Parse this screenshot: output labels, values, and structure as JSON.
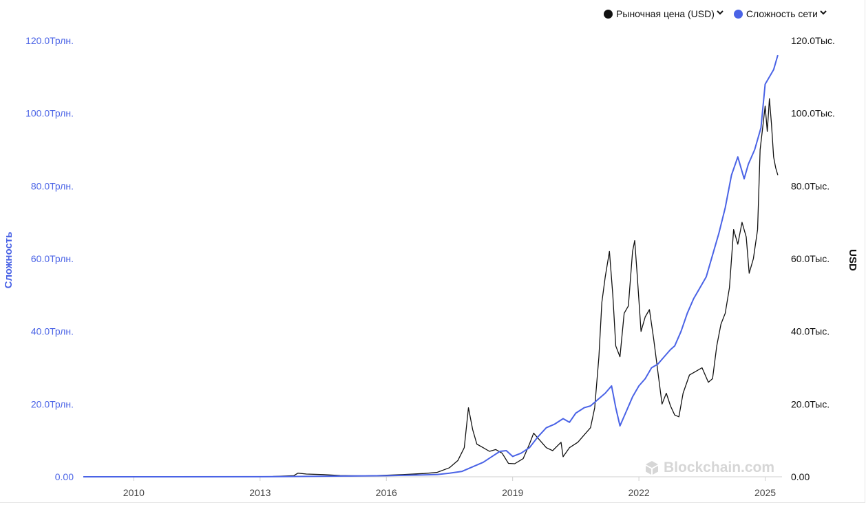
{
  "legend": {
    "items": [
      {
        "label": "Рыночная цена (USD)",
        "color": "#111111"
      },
      {
        "label": "Сложность сети",
        "color": "#4a63e6"
      }
    ]
  },
  "watermark": "Blockchain.com",
  "chart_data": {
    "type": "line",
    "xlabel": "",
    "x_ticks": [
      "2010",
      "2013",
      "2016",
      "2019",
      "2022",
      "2025"
    ],
    "x_range": [
      2008.8,
      2025.4
    ],
    "left_axis": {
      "label": "Сложность",
      "color": "#4a63e6",
      "range": [
        0,
        120
      ],
      "ticks": [
        {
          "value": 0,
          "label": "0.00"
        },
        {
          "value": 20,
          "label": "20.0Трлн."
        },
        {
          "value": 40,
          "label": "40.0Трлн."
        },
        {
          "value": 60,
          "label": "60.0Трлн."
        },
        {
          "value": 80,
          "label": "80.0Трлн."
        },
        {
          "value": 100,
          "label": "100.0Трлн."
        },
        {
          "value": 120,
          "label": "120.0Трлн."
        }
      ]
    },
    "right_axis": {
      "label": "USD",
      "color": "#111111",
      "range": [
        0,
        120000
      ],
      "ticks": [
        {
          "value": 0,
          "label": "0.00"
        },
        {
          "value": 20000,
          "label": "20.0Тыс."
        },
        {
          "value": 40000,
          "label": "40.0Тыс."
        },
        {
          "value": 60000,
          "label": "60.0Тыс."
        },
        {
          "value": 80000,
          "label": "80.0Тыс."
        },
        {
          "value": 100000,
          "label": "100.0Тыс."
        },
        {
          "value": 120000,
          "label": "120.0Тыс."
        }
      ]
    },
    "series": [
      {
        "name": "Рыночная цена (USD)",
        "axis": "right",
        "color": "#111111",
        "points": [
          [
            2008.8,
            0
          ],
          [
            2010.5,
            0
          ],
          [
            2011.5,
            5
          ],
          [
            2012.5,
            10
          ],
          [
            2013.3,
            100
          ],
          [
            2013.8,
            300
          ],
          [
            2013.9,
            1000
          ],
          [
            2014.1,
            750
          ],
          [
            2014.5,
            600
          ],
          [
            2014.9,
            350
          ],
          [
            2015.5,
            250
          ],
          [
            2015.9,
            400
          ],
          [
            2016.4,
            600
          ],
          [
            2016.9,
            900
          ],
          [
            2017.2,
            1200
          ],
          [
            2017.5,
            2500
          ],
          [
            2017.7,
            4500
          ],
          [
            2017.85,
            8000
          ],
          [
            2017.95,
            19000
          ],
          [
            2018.05,
            13000
          ],
          [
            2018.15,
            9000
          ],
          [
            2018.3,
            8000
          ],
          [
            2018.45,
            7000
          ],
          [
            2018.6,
            7500
          ],
          [
            2018.75,
            6500
          ],
          [
            2018.9,
            3700
          ],
          [
            2019.05,
            3600
          ],
          [
            2019.25,
            5000
          ],
          [
            2019.4,
            9000
          ],
          [
            2019.5,
            12000
          ],
          [
            2019.65,
            10000
          ],
          [
            2019.8,
            8000
          ],
          [
            2019.95,
            7200
          ],
          [
            2020.15,
            9500
          ],
          [
            2020.2,
            5500
          ],
          [
            2020.35,
            8000
          ],
          [
            2020.55,
            9500
          ],
          [
            2020.7,
            11500
          ],
          [
            2020.85,
            13500
          ],
          [
            2020.95,
            19000
          ],
          [
            2021.05,
            33000
          ],
          [
            2021.12,
            48000
          ],
          [
            2021.2,
            55000
          ],
          [
            2021.3,
            62000
          ],
          [
            2021.38,
            50000
          ],
          [
            2021.45,
            36000
          ],
          [
            2021.55,
            33000
          ],
          [
            2021.65,
            45000
          ],
          [
            2021.75,
            47000
          ],
          [
            2021.85,
            62000
          ],
          [
            2021.9,
            65000
          ],
          [
            2021.95,
            57000
          ],
          [
            2022.05,
            40000
          ],
          [
            2022.15,
            44000
          ],
          [
            2022.25,
            46000
          ],
          [
            2022.35,
            38000
          ],
          [
            2022.45,
            29000
          ],
          [
            2022.55,
            20000
          ],
          [
            2022.65,
            23000
          ],
          [
            2022.75,
            19500
          ],
          [
            2022.85,
            17000
          ],
          [
            2022.95,
            16500
          ],
          [
            2023.05,
            23000
          ],
          [
            2023.2,
            28000
          ],
          [
            2023.35,
            29000
          ],
          [
            2023.5,
            30000
          ],
          [
            2023.65,
            26000
          ],
          [
            2023.75,
            27000
          ],
          [
            2023.85,
            36000
          ],
          [
            2023.95,
            42000
          ],
          [
            2024.05,
            45000
          ],
          [
            2024.15,
            52000
          ],
          [
            2024.25,
            68000
          ],
          [
            2024.35,
            64000
          ],
          [
            2024.45,
            70000
          ],
          [
            2024.55,
            66000
          ],
          [
            2024.62,
            56000
          ],
          [
            2024.72,
            60000
          ],
          [
            2024.82,
            68000
          ],
          [
            2024.88,
            90000
          ],
          [
            2024.95,
            97000
          ],
          [
            2025.0,
            102000
          ],
          [
            2025.05,
            95000
          ],
          [
            2025.1,
            104000
          ],
          [
            2025.15,
            97000
          ],
          [
            2025.2,
            88000
          ],
          [
            2025.25,
            85000
          ],
          [
            2025.3,
            83000
          ]
        ]
      },
      {
        "name": "Сложность сети",
        "axis": "left",
        "color": "#4a63e6",
        "points": [
          [
            2008.8,
            0
          ],
          [
            2013.0,
            0.02
          ],
          [
            2014.0,
            0.1
          ],
          [
            2015.0,
            0.2
          ],
          [
            2016.0,
            0.3
          ],
          [
            2016.8,
            0.5
          ],
          [
            2017.2,
            0.6
          ],
          [
            2017.5,
            1.0
          ],
          [
            2017.8,
            1.5
          ],
          [
            2018.0,
            2.5
          ],
          [
            2018.3,
            4.0
          ],
          [
            2018.5,
            5.5
          ],
          [
            2018.7,
            7.0
          ],
          [
            2018.85,
            7.2
          ],
          [
            2019.0,
            5.6
          ],
          [
            2019.2,
            6.5
          ],
          [
            2019.4,
            8.0
          ],
          [
            2019.6,
            11.0
          ],
          [
            2019.8,
            13.5
          ],
          [
            2020.0,
            14.5
          ],
          [
            2020.2,
            16.0
          ],
          [
            2020.35,
            15.0
          ],
          [
            2020.5,
            17.5
          ],
          [
            2020.7,
            19.0
          ],
          [
            2020.85,
            19.5
          ],
          [
            2021.0,
            21.0
          ],
          [
            2021.2,
            23.0
          ],
          [
            2021.35,
            25.0
          ],
          [
            2021.45,
            19.0
          ],
          [
            2021.55,
            14.0
          ],
          [
            2021.7,
            18.0
          ],
          [
            2021.85,
            22.0
          ],
          [
            2022.0,
            25.0
          ],
          [
            2022.15,
            27.0
          ],
          [
            2022.3,
            30.0
          ],
          [
            2022.45,
            31.0
          ],
          [
            2022.6,
            33.0
          ],
          [
            2022.75,
            35.0
          ],
          [
            2022.85,
            36.0
          ],
          [
            2023.0,
            40.0
          ],
          [
            2023.15,
            45.0
          ],
          [
            2023.3,
            49.0
          ],
          [
            2023.45,
            52.0
          ],
          [
            2023.6,
            55.0
          ],
          [
            2023.75,
            61.0
          ],
          [
            2023.9,
            67.0
          ],
          [
            2024.05,
            74.0
          ],
          [
            2024.2,
            83.0
          ],
          [
            2024.35,
            88.0
          ],
          [
            2024.5,
            82.0
          ],
          [
            2024.6,
            86.0
          ],
          [
            2024.75,
            90.0
          ],
          [
            2024.9,
            96.0
          ],
          [
            2025.0,
            108.0
          ],
          [
            2025.1,
            110.0
          ],
          [
            2025.2,
            112.0
          ],
          [
            2025.3,
            116.0
          ]
        ]
      }
    ]
  }
}
